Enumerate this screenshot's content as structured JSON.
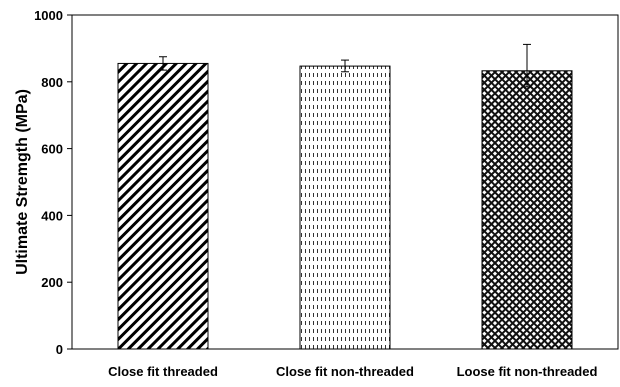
{
  "chart_data": {
    "type": "bar",
    "title": "",
    "xlabel": "",
    "ylabel": "Ultimate Stremgth (MPa)",
    "ylim": [
      0,
      1000
    ],
    "yticks": [
      0,
      200,
      400,
      600,
      800,
      1000
    ],
    "grid": false,
    "categories": [
      "Close fit threaded",
      "Close fit non-threaded",
      "Loose fit non-threaded"
    ],
    "values": [
      855,
      847,
      833
    ],
    "error_upper": [
      875,
      865,
      912
    ],
    "error_lower": [
      835,
      830,
      785
    ],
    "patterns": [
      "diagonal-lines",
      "dashes",
      "crosshatch"
    ]
  }
}
